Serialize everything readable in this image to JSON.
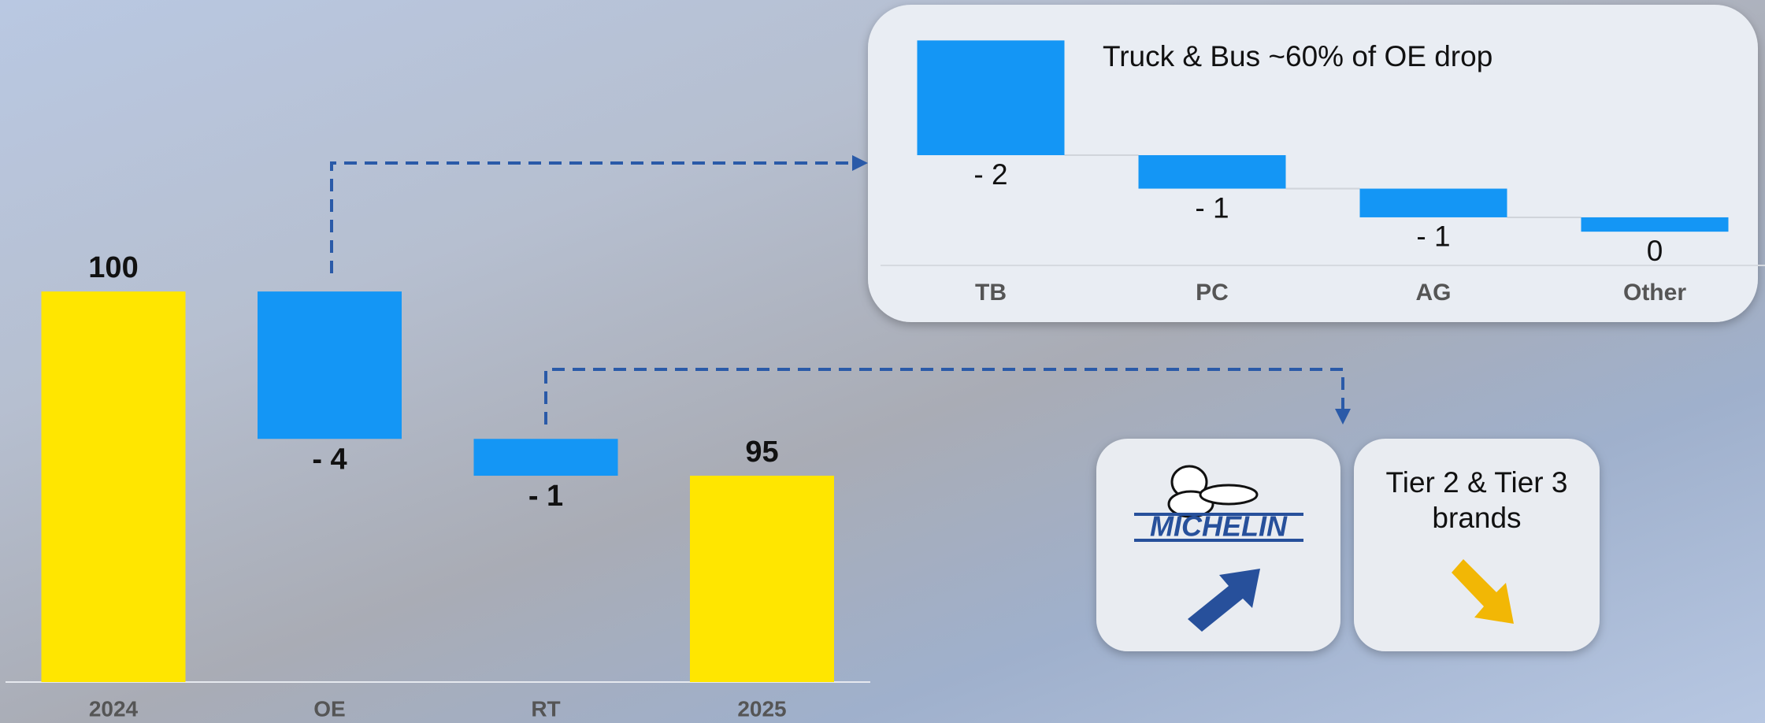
{
  "chart_data": [
    {
      "type": "waterfall",
      "categories": [
        "2024",
        "OE",
        "RT",
        "2025"
      ],
      "values": [
        100,
        -4,
        -1,
        95
      ],
      "value_labels": [
        "100",
        "- 4",
        "- 1",
        "95"
      ],
      "measure": [
        "absolute",
        "relative",
        "relative",
        "absolute"
      ],
      "colors": [
        "#ffe600",
        "#1496f5",
        "#1496f5",
        "#ffe600"
      ],
      "ylim": [
        89.4,
        104
      ]
    },
    {
      "type": "waterfall",
      "title": "Truck & Bus ~60% of OE drop",
      "categories": [
        "TB",
        "PC",
        "AG",
        "Other"
      ],
      "values": [
        -2.4,
        -0.7,
        -0.6,
        -0.3
      ],
      "value_labels": [
        "- 2",
        "- 1",
        "- 1",
        "0"
      ],
      "measure": [
        "relative",
        "relative",
        "relative",
        "relative"
      ],
      "colors": [
        "#1496f5",
        "#1496f5",
        "#1496f5",
        "#1496f5"
      ],
      "connectors": true,
      "ylim": [
        -4.5,
        0.5
      ]
    }
  ],
  "brands": {
    "logo": "MICHELIN",
    "others": "Tier 2 & Tier 3 brands"
  }
}
